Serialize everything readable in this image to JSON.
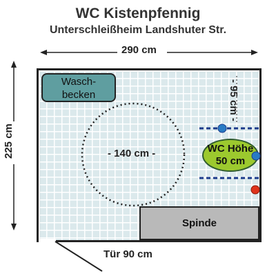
{
  "title": "WC Kistenpfennig",
  "subtitle": "Unterschleißheim Landshuter Str.",
  "dimensions": {
    "width": "290 cm",
    "depth": "225 cm",
    "turning_circle": "- 140 cm -",
    "clearance": "- 95 cm -",
    "door": "Tür 90 cm"
  },
  "fixtures": {
    "sink_line1": "Wasch-",
    "sink_line2": "becken",
    "lockers": "Spinde",
    "wc_line1": "WC Höhe",
    "wc_line2": "50 cm"
  },
  "colors": {
    "floor": "#dbe9ec",
    "sink": "#5f9ea0",
    "wc": "#9cc92e",
    "lockers": "#b9b9b9",
    "grab_bar": "#1a3a8a",
    "marker_blue": "#2a7bc4",
    "marker_red": "#e0341c"
  }
}
